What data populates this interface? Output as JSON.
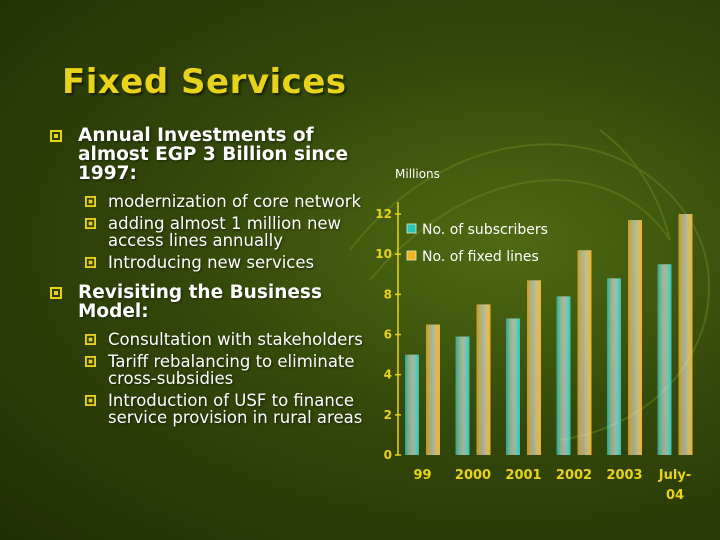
{
  "slide": {
    "title": "Fixed Services",
    "bullets": [
      {
        "text": "Annual Investments of almost EGP 3 Billion since 1997:",
        "sub": [
          "modernization of core network",
          "adding almost 1 million new access lines annually",
          "Introducing new services"
        ]
      },
      {
        "text": "Revisiting the Business Model:",
        "sub": [
          "Consultation with stakeholders",
          "Tariff rebalancing to eliminate cross-subsidies",
          "Introduction of USF to finance service provision in rural areas"
        ]
      }
    ]
  },
  "chart_data": {
    "type": "bar",
    "unit_label": "Millions",
    "categories": [
      "99",
      "2000",
      "2001",
      "2002",
      "2003",
      "July-04"
    ],
    "series": [
      {
        "name": "No. of subscribers",
        "color": "#22c7b8",
        "values": [
          5.0,
          5.9,
          6.8,
          7.9,
          8.8,
          9.5
        ]
      },
      {
        "name": "No. of fixed lines",
        "color": "#f2b11e",
        "values": [
          6.5,
          7.5,
          8.7,
          10.2,
          11.7,
          12.0
        ]
      }
    ],
    "y_ticks": [
      0,
      2,
      4,
      6,
      8,
      10,
      12
    ],
    "ylim": [
      0,
      12.6
    ],
    "legend_position": "top-left",
    "grid": false
  }
}
